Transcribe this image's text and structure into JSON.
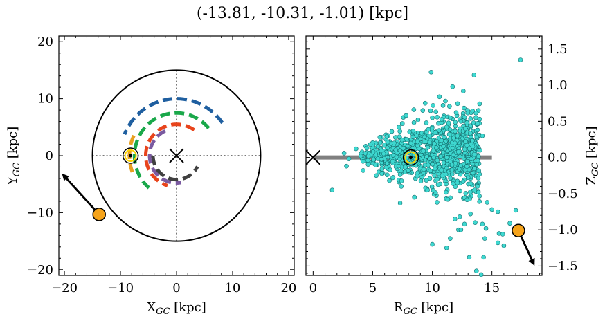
{
  "title": "(-13.81, -10.31, -1.01) [kpc]",
  "chart_data": [
    {
      "type": "scatter",
      "panel": "left",
      "xlabel": "X_GC [kpc]",
      "ylabel": "Y_GC [kpc]",
      "xlim": [
        -21,
        21
      ],
      "ylim": [
        -21,
        21
      ],
      "xticks": [
        -20,
        -10,
        0,
        10,
        20
      ],
      "yticks": [
        -20,
        -10,
        0,
        10,
        20
      ],
      "xtick_labels": [
        "−20",
        "−10",
        "0",
        "10",
        "20"
      ],
      "ytick_labels": [
        "−20",
        "−10",
        "0",
        "10",
        "20"
      ],
      "disk_radius": 15,
      "galactic_center": [
        0,
        0
      ],
      "sun": [
        -8.2,
        0
      ],
      "object": {
        "x": -13.81,
        "y": -10.31,
        "arrow_to": [
          -20.2,
          -3.4
        ]
      },
      "spiral_arms": [
        {
          "color": "#1f5fa0",
          "radius": 10,
          "theta_start": 35,
          "theta_end": 160
        },
        {
          "color": "#1aa84a",
          "radius": 7.5,
          "theta_start": 40,
          "theta_end": 230
        },
        {
          "color": "#e8441c",
          "radius": 5.5,
          "theta_start": 55,
          "theta_end": 255
        },
        {
          "color": "#e8a020",
          "radius": 8.4,
          "theta_start": 155,
          "theta_end": 200
        },
        {
          "color": "#7a5aa0",
          "radius": 4.8,
          "theta_start": 115,
          "theta_end": 280
        },
        {
          "color": "#404040",
          "radius": 4.2,
          "theta_start": 180,
          "theta_end": 335
        }
      ],
      "colors": {
        "disk": "#000000",
        "object": "#f5a31a",
        "sun": "#ffd500"
      }
    },
    {
      "type": "scatter",
      "panel": "right",
      "xlabel": "R_GC [kpc]",
      "ylabel": "Z_GC [kpc]",
      "xlim": [
        -0.6,
        19.2
      ],
      "ylim": [
        -1.63,
        1.68
      ],
      "xticks": [
        0,
        5,
        10,
        15
      ],
      "yticks": [
        -1.5,
        -1.0,
        -0.5,
        0.0,
        0.5,
        1.0,
        1.5
      ],
      "xtick_labels": [
        "0",
        "5",
        "10",
        "15"
      ],
      "ytick_labels": [
        "−1.5",
        "−1.0",
        "−0.5",
        "0.0",
        "0.5",
        "1.0",
        "1.5"
      ],
      "disk_band": {
        "r_start": 0,
        "r_end": 15,
        "z": 0
      },
      "galactic_center": [
        0,
        0
      ],
      "sun": [
        8.2,
        0
      ],
      "object": {
        "r": 17.22,
        "z": -1.01,
        "arrow_to": [
          18.5,
          -1.47
        ]
      },
      "stars": [
        [
          17.4,
          1.35
        ],
        [
          9.9,
          1.18
        ],
        [
          13.5,
          1.14
        ],
        [
          11.7,
          0.98
        ],
        [
          12.6,
          0.92
        ],
        [
          10.6,
          0.84
        ],
        [
          11.1,
          0.78
        ],
        [
          9.4,
          0.75
        ],
        [
          10.9,
          0.72
        ],
        [
          9.2,
          0.65
        ],
        [
          10.3,
          0.63
        ],
        [
          12.0,
          0.62
        ],
        [
          11.5,
          0.55
        ],
        [
          7.8,
          0.58
        ],
        [
          8.8,
          0.52
        ],
        [
          12.9,
          0.48
        ],
        [
          6.6,
          0.36
        ],
        [
          13.8,
          0.38
        ],
        [
          14.2,
          0.3
        ],
        [
          5.6,
          0.28
        ],
        [
          4.8,
          0.18
        ],
        [
          13.2,
          0.44
        ],
        [
          12.4,
          0.5
        ],
        [
          10.0,
          0.55
        ],
        [
          9.5,
          0.48
        ],
        [
          11.2,
          0.42
        ],
        [
          7.2,
          0.42
        ],
        [
          3.6,
          0.12
        ],
        [
          2.6,
          0.06
        ],
        [
          3.0,
          -0.02
        ],
        [
          1.6,
          -0.45
        ],
        [
          2.8,
          -0.12
        ],
        [
          4.2,
          -0.18
        ],
        [
          5.3,
          -0.25
        ],
        [
          6.4,
          -0.32
        ],
        [
          7.4,
          -0.4
        ],
        [
          7.3,
          -0.63
        ],
        [
          8.5,
          -0.55
        ],
        [
          9.6,
          -0.45
        ],
        [
          10.4,
          -0.62
        ],
        [
          11.3,
          -0.58
        ],
        [
          12.3,
          -0.82
        ],
        [
          12.7,
          -0.92
        ],
        [
          11.9,
          -0.85
        ],
        [
          13.2,
          -0.78
        ],
        [
          13.6,
          -0.9
        ],
        [
          14.2,
          -0.92
        ],
        [
          14.5,
          -0.98
        ],
        [
          15.0,
          -0.72
        ],
        [
          14.6,
          -0.62
        ],
        [
          15.5,
          -0.75
        ],
        [
          15.6,
          -1.05
        ],
        [
          15.9,
          -1.06
        ],
        [
          17.0,
          -0.73
        ],
        [
          15.5,
          -1.18
        ],
        [
          16.0,
          -1.22
        ],
        [
          16.5,
          -0.91
        ],
        [
          12.2,
          -1.0
        ],
        [
          12.4,
          -1.0
        ],
        [
          10.0,
          -1.2
        ],
        [
          11.5,
          -1.12
        ],
        [
          11.2,
          -1.25
        ],
        [
          14.4,
          -1.12
        ],
        [
          14.3,
          -1.38
        ],
        [
          13.7,
          -1.57
        ],
        [
          14.1,
          -1.62
        ],
        [
          13.1,
          -1.38
        ],
        [
          10.4,
          -0.3
        ],
        [
          12.1,
          -0.35
        ],
        [
          13.0,
          -0.28
        ],
        [
          13.8,
          -0.4
        ],
        [
          11.9,
          0.2
        ],
        [
          12.8,
          0.22
        ],
        [
          13.4,
          0.15
        ],
        [
          14.0,
          0.1
        ],
        [
          6.2,
          -0.08
        ],
        [
          4.0,
          0.02
        ],
        [
          6.8,
          0.2
        ],
        [
          7.7,
          -0.2
        ],
        [
          9.8,
          0.3
        ]
      ],
      "colors": {
        "stars": "#3ed8d0",
        "band": "#808080",
        "object": "#f5a31a"
      }
    }
  ]
}
